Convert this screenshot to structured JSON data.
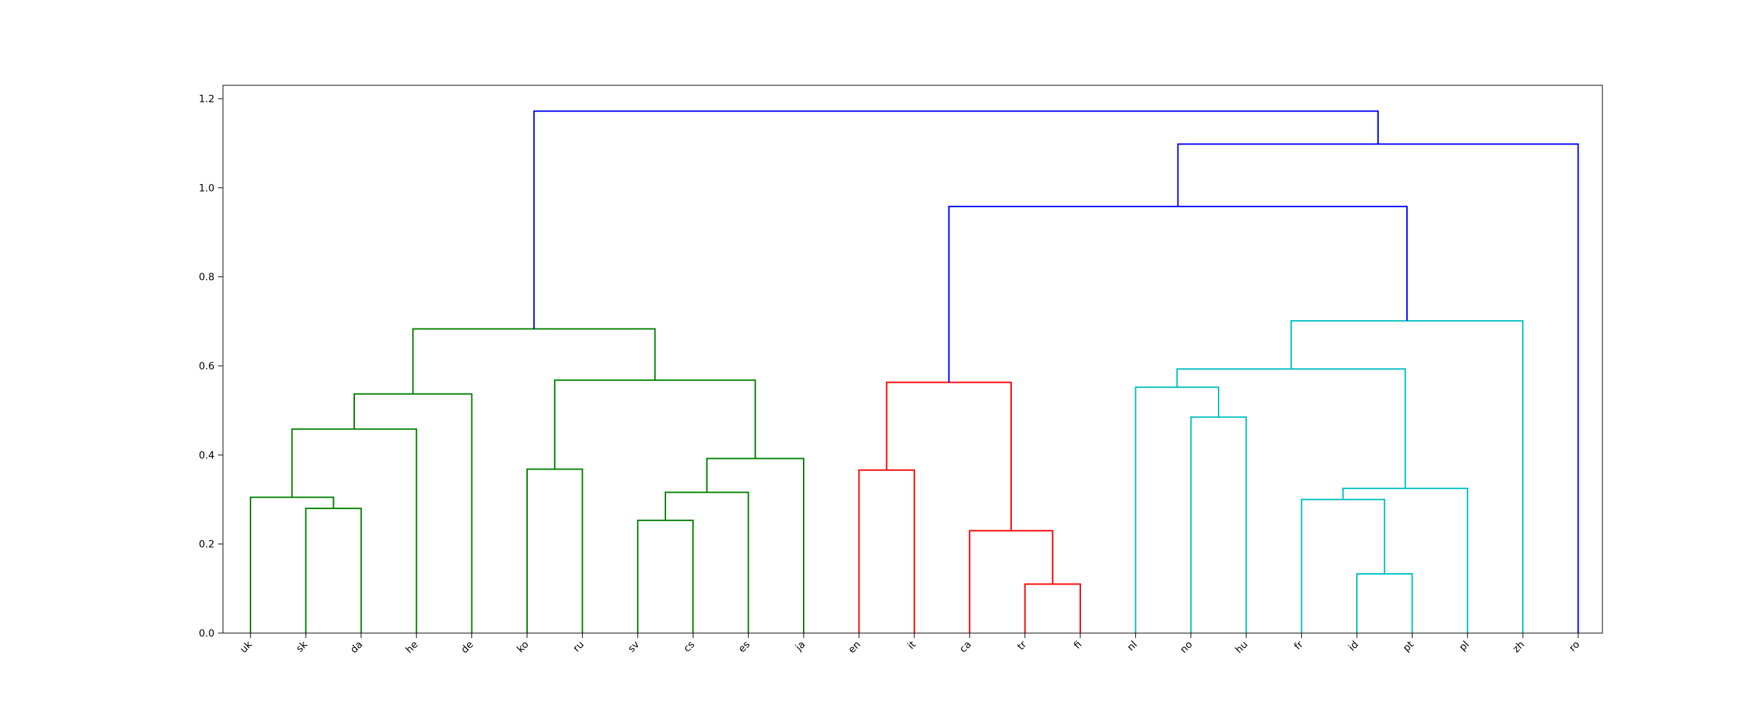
{
  "chart_data": {
    "type": "dendrogram",
    "leaves": [
      "uk",
      "sk",
      "da",
      "he",
      "de",
      "ko",
      "ru",
      "sv",
      "cs",
      "es",
      "ja",
      "en",
      "it",
      "ca",
      "tr",
      "fi",
      "nl",
      "no",
      "hu",
      "fr",
      "id",
      "pt",
      "pl",
      "zh",
      "ro"
    ],
    "ylim": [
      0,
      1.23
    ],
    "yticks": [
      0.0,
      0.2,
      0.4,
      0.6,
      0.8,
      1.0,
      1.2
    ],
    "ytick_labels": [
      "0.0",
      "0.2",
      "0.4",
      "0.6",
      "0.8",
      "1.0",
      "1.2"
    ],
    "merges": [
      {
        "id": "m1",
        "left": "sk",
        "right": "da",
        "height": 0.28,
        "color": "#008000"
      },
      {
        "id": "m2",
        "left": "uk",
        "right": "m1",
        "height": 0.305,
        "color": "#008000"
      },
      {
        "id": "m3",
        "left": "m2",
        "right": "he",
        "height": 0.458,
        "color": "#008000"
      },
      {
        "id": "m4",
        "left": "m3",
        "right": "de",
        "height": 0.537,
        "color": "#008000"
      },
      {
        "id": "m5",
        "left": "ko",
        "right": "ru",
        "height": 0.368,
        "color": "#008000"
      },
      {
        "id": "m6",
        "left": "sv",
        "right": "cs",
        "height": 0.253,
        "color": "#008000"
      },
      {
        "id": "m7",
        "left": "m6",
        "right": "es",
        "height": 0.316,
        "color": "#008000"
      },
      {
        "id": "m8",
        "left": "m7",
        "right": "ja",
        "height": 0.392,
        "color": "#008000"
      },
      {
        "id": "m9",
        "left": "m5",
        "right": "m8",
        "height": 0.568,
        "color": "#008000"
      },
      {
        "id": "m10",
        "left": "m4",
        "right": "m9",
        "height": 0.683,
        "color": "#008000"
      },
      {
        "id": "m11",
        "left": "en",
        "right": "it",
        "height": 0.366,
        "color": "#ff0000"
      },
      {
        "id": "m12",
        "left": "tr",
        "right": "fi",
        "height": 0.11,
        "color": "#ff0000"
      },
      {
        "id": "m13",
        "left": "ca",
        "right": "m12",
        "height": 0.23,
        "color": "#ff0000"
      },
      {
        "id": "m14",
        "left": "m11",
        "right": "m13",
        "height": 0.563,
        "color": "#ff0000"
      },
      {
        "id": "m15",
        "left": "no",
        "right": "hu",
        "height": 0.485,
        "color": "#00bfbf"
      },
      {
        "id": "m16",
        "left": "nl",
        "right": "m15",
        "height": 0.552,
        "color": "#00bfbf"
      },
      {
        "id": "m17",
        "left": "id",
        "right": "pt",
        "height": 0.133,
        "color": "#00bfbf"
      },
      {
        "id": "m18",
        "left": "fr",
        "right": "m17",
        "height": 0.3,
        "color": "#00bfbf"
      },
      {
        "id": "m19",
        "left": "m18",
        "right": "pl",
        "height": 0.325,
        "color": "#00bfbf"
      },
      {
        "id": "m20",
        "left": "m16",
        "right": "m19",
        "height": 0.593,
        "color": "#00bfbf"
      },
      {
        "id": "m21",
        "left": "m20",
        "right": "zh",
        "height": 0.701,
        "color": "#00bfbf"
      },
      {
        "id": "m22",
        "left": "m14",
        "right": "m21",
        "height": 0.958,
        "color": "#0000ff"
      },
      {
        "id": "m23",
        "left": "m22",
        "right": "ro",
        "height": 1.098,
        "color": "#0000ff"
      },
      {
        "id": "m24",
        "left": "m10",
        "right": "m23",
        "height": 1.172,
        "color": "#0000ff"
      }
    ],
    "grid": false,
    "title": "",
    "xlabel": "",
    "ylabel": ""
  }
}
